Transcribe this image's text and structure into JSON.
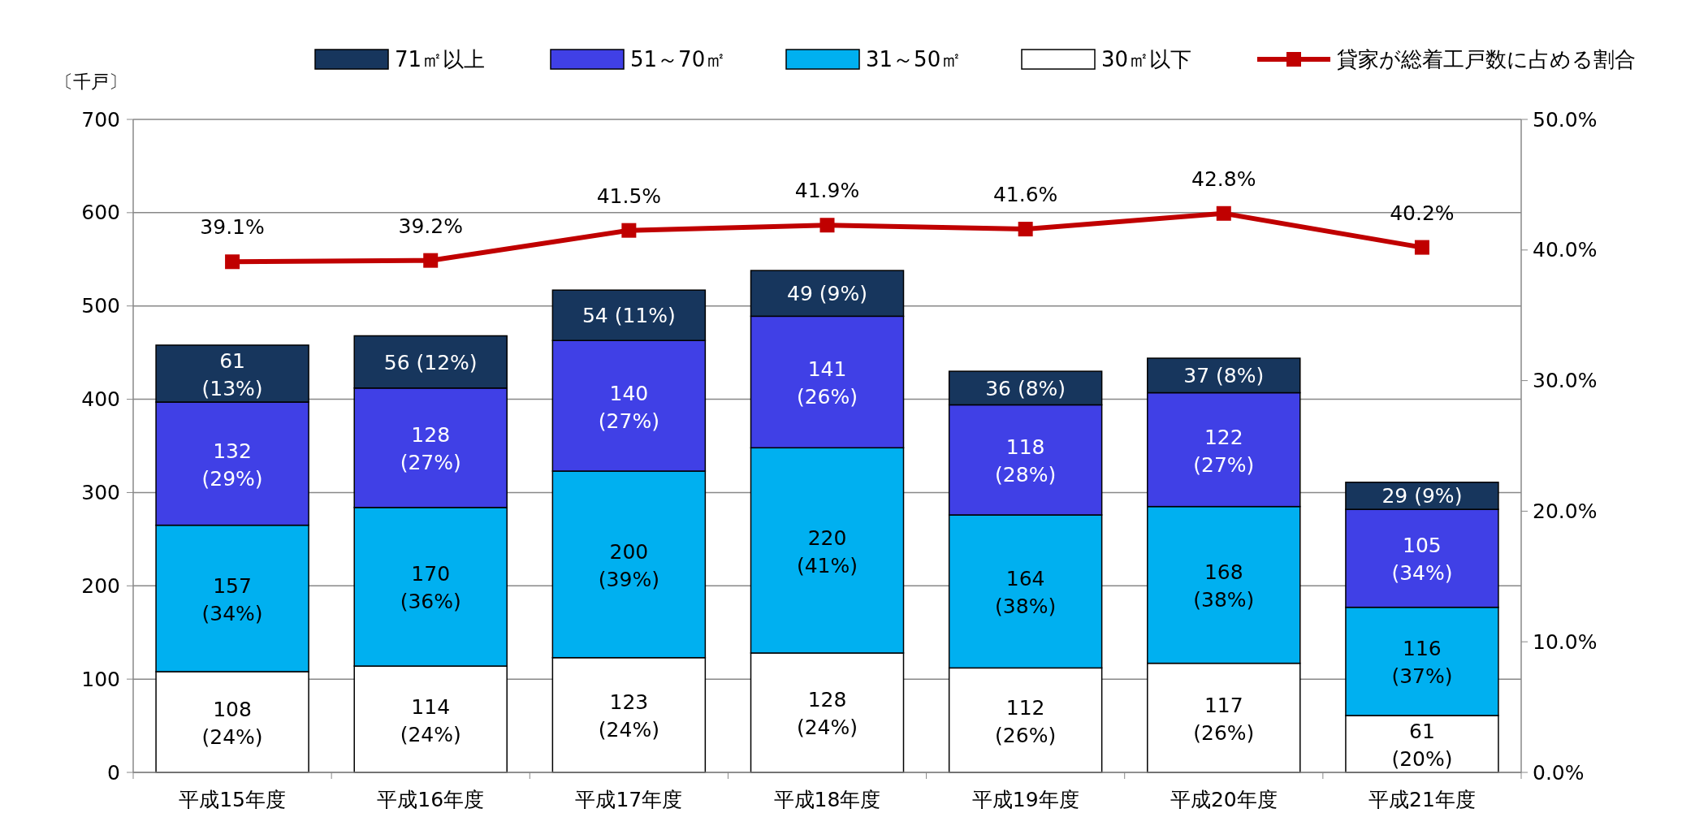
{
  "chart_data": {
    "type": "bar",
    "stacked": true,
    "ylabel": "〔千戸〕",
    "categories": [
      "平成15年度",
      "平成16年度",
      "平成17年度",
      "平成18年度",
      "平成19年度",
      "平成20年度",
      "平成21年度"
    ],
    "series": [
      {
        "name": "30㎡以下",
        "color": "#ffffff",
        "values": [
          108,
          114,
          123,
          128,
          112,
          117,
          61
        ],
        "value_labels": [
          "108 (24%)",
          "114 (24%)",
          "123 (24%)",
          "128 (24%)",
          "112 (26%)",
          "117 (26%)",
          "61 (20%)"
        ]
      },
      {
        "name": "31～50㎡",
        "color": "#00b0f0",
        "values": [
          157,
          170,
          200,
          220,
          164,
          168,
          116
        ],
        "value_labels": [
          "157 (34%)",
          "170 (36%)",
          "200 (39%)",
          "220 (41%)",
          "164 (38%)",
          "168 (38%)",
          "116 (37%)"
        ]
      },
      {
        "name": "51～70㎡",
        "color": "#4040e6",
        "values": [
          132,
          128,
          140,
          141,
          118,
          122,
          105
        ],
        "value_labels": [
          "132 (29%)",
          "128 (27%)",
          "140 (27%)",
          "141 (26%)",
          "118 (28%)",
          "122 (27%)",
          "105 (34%)"
        ]
      },
      {
        "name": "71㎡以上",
        "color": "#17365d",
        "values": [
          61,
          56,
          54,
          49,
          36,
          37,
          29
        ],
        "value_labels": [
          "61 (13%)",
          "56 (12%)",
          "54 (11%)",
          "49 (9%)",
          "36 (8%)",
          "37 (8%)",
          "29 (9%)"
        ]
      },
      {
        "name": "貸家が総着工戸数に占める割合",
        "type": "line",
        "axis": "y2",
        "color": "#c00000",
        "marker": "square",
        "values": [
          39.1,
          39.2,
          41.5,
          41.9,
          41.6,
          42.8,
          40.2
        ],
        "value_labels": [
          "39.1%",
          "39.2%",
          "41.5%",
          "41.9%",
          "41.6%",
          "42.8%",
          "40.2%"
        ]
      }
    ],
    "ylim": [
      0,
      700
    ],
    "yticks": [
      0,
      100,
      200,
      300,
      400,
      500,
      600,
      700
    ],
    "y2lim": [
      0,
      50
    ],
    "y2ticks": [
      {
        "value": 0,
        "label": "0.0%"
      },
      {
        "value": 10,
        "label": "10.0%"
      },
      {
        "value": 20,
        "label": "20.0%"
      },
      {
        "value": 30,
        "label": "30.0%"
      },
      {
        "value": 40,
        "label": "40.0%"
      },
      {
        "value": 50,
        "label": "50.0%"
      }
    ],
    "grid": "y",
    "legend": "top"
  }
}
